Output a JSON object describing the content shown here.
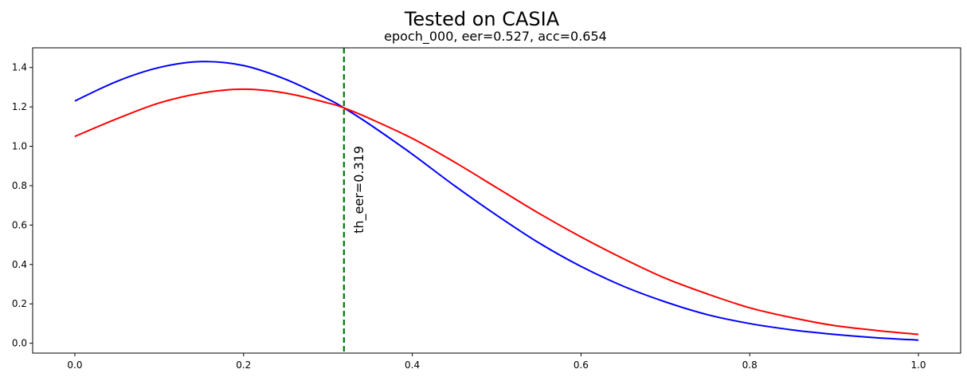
{
  "chart_data": {
    "type": "line",
    "suptitle": "Tested on CASIA",
    "title": "epoch_000, eer=0.527, acc=0.654",
    "xlabel": "",
    "ylabel": "",
    "xlim": [
      -0.05,
      1.05
    ],
    "ylim": [
      -0.05,
      1.5
    ],
    "grid": false,
    "x_ticks": [
      0.0,
      0.2,
      0.4,
      0.6,
      0.8,
      1.0
    ],
    "x_tick_labels": [
      "0.0",
      "0.2",
      "0.4",
      "0.6",
      "0.8",
      "1.0"
    ],
    "y_ticks": [
      0.0,
      0.2,
      0.4,
      0.6,
      0.8,
      1.0,
      1.2,
      1.4
    ],
    "y_tick_labels": [
      "0.0",
      "0.2",
      "0.4",
      "0.6",
      "0.8",
      "1.0",
      "1.2",
      "1.4"
    ],
    "series": [
      {
        "color": "#0000ff",
        "x": [
          0.0,
          0.05,
          0.1,
          0.15,
          0.2,
          0.25,
          0.3,
          0.319,
          0.35,
          0.4,
          0.45,
          0.5,
          0.55,
          0.6,
          0.65,
          0.7,
          0.75,
          0.8,
          0.85,
          0.9,
          0.95,
          1.0
        ],
        "y": [
          1.23,
          1.33,
          1.4,
          1.43,
          1.41,
          1.34,
          1.24,
          1.195,
          1.11,
          0.96,
          0.8,
          0.65,
          0.51,
          0.39,
          0.29,
          0.21,
          0.145,
          0.1,
          0.068,
          0.045,
          0.028,
          0.016
        ]
      },
      {
        "color": "#ff0000",
        "x": [
          0.0,
          0.05,
          0.1,
          0.15,
          0.2,
          0.25,
          0.3,
          0.319,
          0.35,
          0.4,
          0.45,
          0.5,
          0.55,
          0.6,
          0.65,
          0.7,
          0.75,
          0.8,
          0.85,
          0.9,
          0.95,
          1.0
        ],
        "y": [
          1.05,
          1.14,
          1.22,
          1.27,
          1.29,
          1.27,
          1.22,
          1.195,
          1.14,
          1.04,
          0.92,
          0.79,
          0.66,
          0.54,
          0.43,
          0.33,
          0.25,
          0.18,
          0.13,
          0.09,
          0.065,
          0.045
        ]
      }
    ],
    "threshold": {
      "x": 0.319,
      "color": "#007700",
      "label": "th_eer=0.319"
    }
  }
}
